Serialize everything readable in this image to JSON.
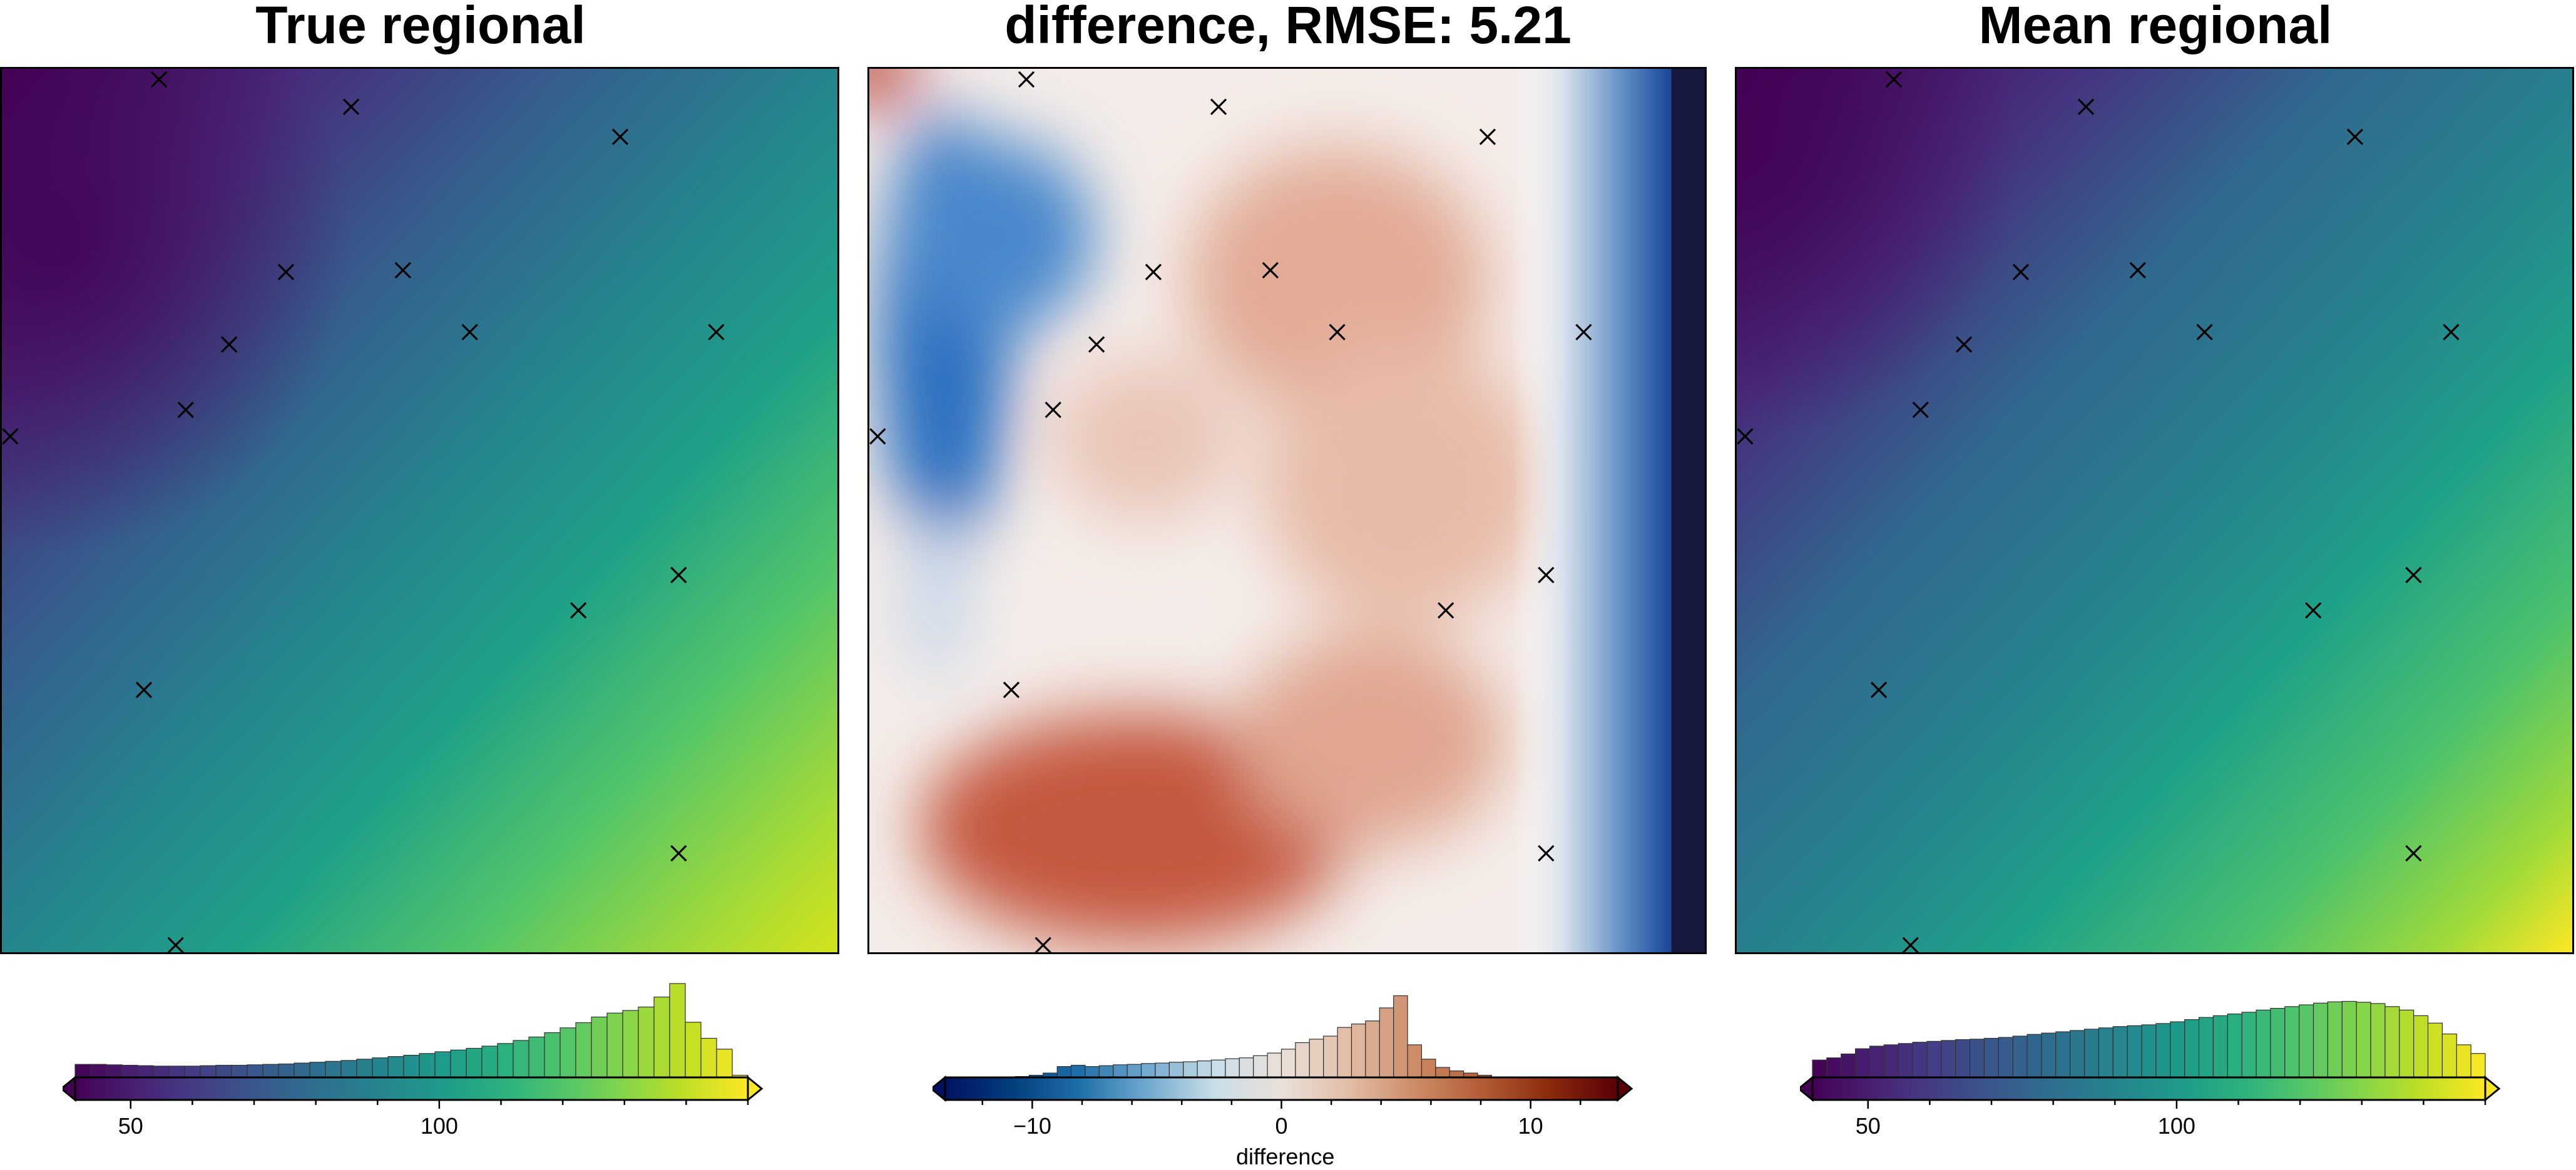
{
  "panels": [
    {
      "title": "True regional",
      "chart_data": {
        "type": "heatmap",
        "colormap": "viridis",
        "title": "True regional",
        "ticks": [
          50,
          100
        ],
        "tick_labels": [
          "50",
          "100"
        ],
        "crange": [
          41,
          150
        ],
        "histogram": [
          3.0,
          3.0,
          2.9,
          2.8,
          2.7,
          2.6,
          2.6,
          2.6,
          2.7,
          2.8,
          2.8,
          2.9,
          3.0,
          3.1,
          3.3,
          3.5,
          3.7,
          3.9,
          4.2,
          4.5,
          4.8,
          5.1,
          5.5,
          5.9,
          6.3,
          6.7,
          7.2,
          7.8,
          8.5,
          9.3,
          10.3,
          11.4,
          12.6,
          13.9,
          14.8,
          15.4,
          16.2,
          18.5,
          21.6,
          12.7,
          9.0,
          6.5,
          0.5
        ]
      }
    },
    {
      "title": "difference, RMSE: 5.21",
      "chart_data": {
        "type": "heatmap",
        "colormap": "vik",
        "title": "difference, RMSE: 5.21",
        "ticks": [
          -10,
          0,
          10
        ],
        "tick_labels": [
          "−10",
          "0",
          "10"
        ],
        "xlabel": "difference",
        "crange": [
          -13.5,
          13.5
        ],
        "histogram": [
          0,
          0,
          0,
          0,
          0,
          0.2,
          0.5,
          1.0,
          2.5,
          2.8,
          2.5,
          2.7,
          2.9,
          3.0,
          3.2,
          3.3,
          3.5,
          3.6,
          3.8,
          4.0,
          4.3,
          4.5,
          5.0,
          5.6,
          6.5,
          8.0,
          8.8,
          9.5,
          11.5,
          12.3,
          13.0,
          16.0,
          18.8,
          7.5,
          4.2,
          2.3,
          1.5,
          1.0,
          0.5,
          0.1,
          0,
          0,
          0,
          0,
          0,
          0,
          0,
          0
        ]
      }
    },
    {
      "title": "Mean regional",
      "chart_data": {
        "type": "heatmap",
        "colormap": "viridis",
        "title": "Mean regional",
        "ticks": [
          50,
          100
        ],
        "tick_labels": [
          "50",
          "100"
        ],
        "crange": [
          41,
          150
        ],
        "histogram": [
          4,
          4.5,
          5.4,
          6.6,
          7.2,
          7.5,
          7.8,
          8.1,
          8.3,
          8.5,
          8.7,
          8.8,
          9.0,
          9.2,
          9.5,
          9.9,
          10.2,
          10.5,
          10.8,
          11.1,
          11.4,
          11.7,
          11.9,
          12.1,
          12.4,
          12.8,
          13.3,
          13.8,
          14.2,
          14.6,
          15.0,
          15.5,
          15.9,
          16.3,
          16.7,
          17.1,
          17.4,
          17.5,
          17.3,
          17.0,
          16.3,
          15.5,
          14.2,
          12.5,
          10.0,
          7.5,
          5.5
        ]
      }
    }
  ],
  "markers": [
    [
      0.188,
      0.012
    ],
    [
      0.418,
      0.043
    ],
    [
      0.74,
      0.077
    ],
    [
      0.34,
      0.23
    ],
    [
      0.48,
      0.228
    ],
    [
      0.272,
      0.312
    ],
    [
      0.56,
      0.298
    ],
    [
      0.855,
      0.298
    ],
    [
      0.22,
      0.386
    ],
    [
      0.01,
      0.416
    ],
    [
      0.81,
      0.573
    ],
    [
      0.69,
      0.613
    ],
    [
      0.17,
      0.703
    ],
    [
      0.81,
      0.888
    ],
    [
      0.208,
      0.992
    ]
  ]
}
